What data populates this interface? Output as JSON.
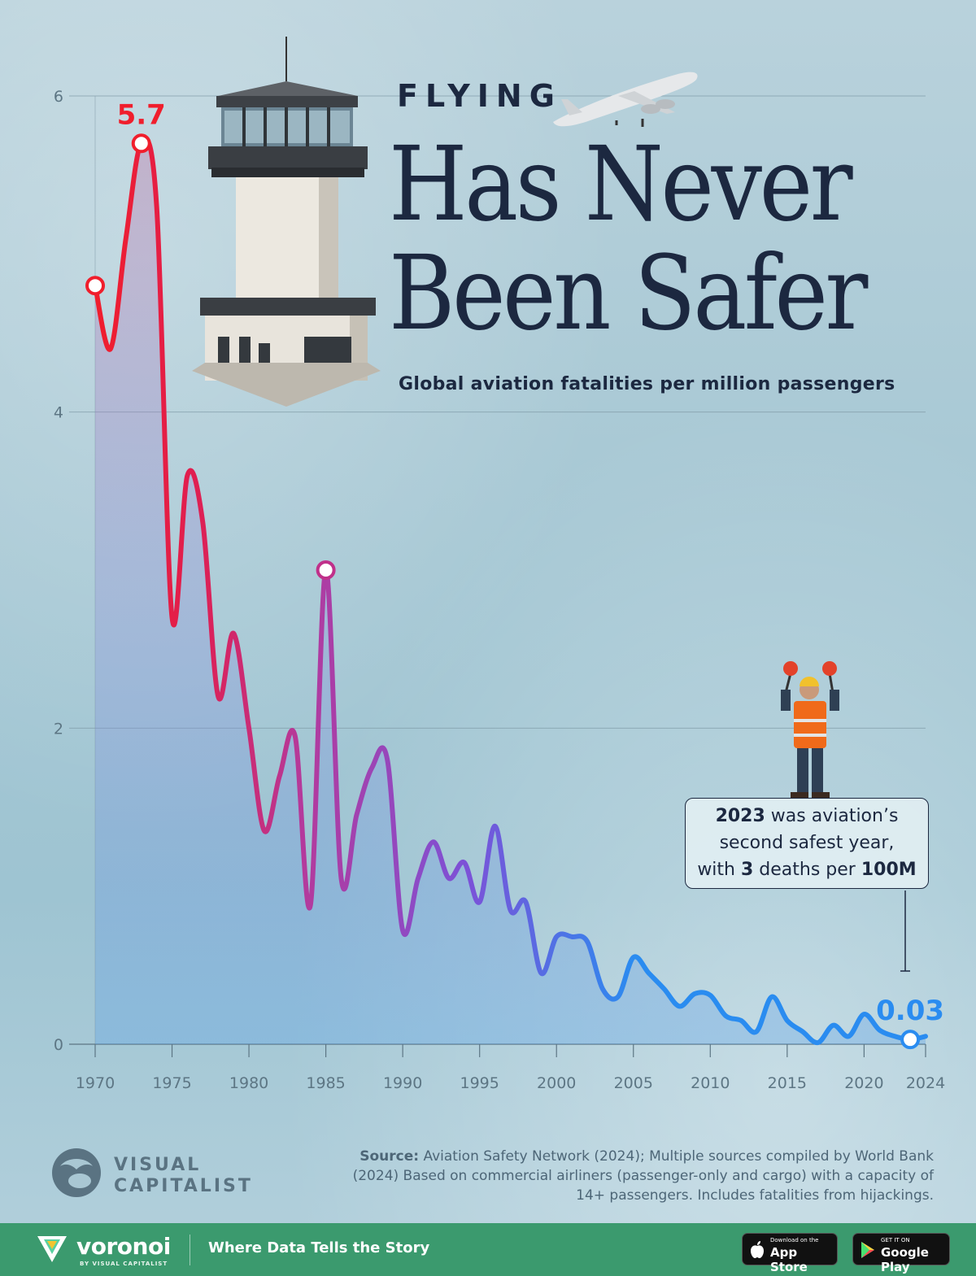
{
  "kicker": "FLYING",
  "headline_line1": "Has Never",
  "headline_line2": "Been Safer",
  "subtitle": "Global aviation fatalities per million passengers",
  "callout": {
    "year": "2023",
    "text_a": " was aviation’s",
    "line2": "second safest year,",
    "text_b": "with ",
    "deaths": "3",
    "text_c": " deaths per ",
    "per": "100M"
  },
  "source": {
    "label": "Source:",
    "text": " Aviation Safety Network (2024); Multiple sources compiled by World Bank (2024) Based on commercial airliners (passenger-only and cargo) with a capacity of 14+ passengers. Includes fatalities from hijackings."
  },
  "brand": {
    "vc_line1": "VISUAL",
    "vc_line2": "CAPITALIST",
    "voronoi": "voronoi",
    "voronoi_sub": "BY VISUAL CAPITALIST",
    "tagline": "Where Data Tells the Story",
    "appstore_small": "Download on the",
    "appstore_big": "App Store",
    "googleplay_small": "GET IT ON",
    "googleplay_big": "Google Play"
  },
  "colors": {
    "line_start": "#f01e2c",
    "line_mid": "#b43a9c",
    "line_purple": "#7b52d8",
    "line_end": "#2a8cf0",
    "headline": "#1c2840",
    "footer": "#3b9a6e"
  },
  "chart_data": {
    "type": "line",
    "title": "Has Never Been Safer",
    "subtitle": "Global aviation fatalities per million passengers",
    "xlabel": "",
    "ylabel": "",
    "xlim": [
      1970,
      2024
    ],
    "ylim": [
      0,
      6
    ],
    "yticks": [
      0,
      2,
      4,
      6
    ],
    "xticks": [
      1970,
      1975,
      1980,
      1985,
      1990,
      1995,
      2000,
      2005,
      2010,
      2015,
      2020,
      2024
    ],
    "grid": true,
    "series": [
      {
        "x": [
          1970,
          1971,
          1972,
          1973,
          1974,
          1975,
          1976,
          1977,
          1978,
          1979,
          1980,
          1981,
          1982,
          1983,
          1984,
          1985,
          1986,
          1987,
          1988,
          1989,
          1990,
          1991,
          1992,
          1993,
          1994,
          1995,
          1996,
          1997,
          1998,
          1999,
          2000,
          2001,
          2002,
          2003,
          2004,
          2005,
          2006,
          2007,
          2008,
          2009,
          2010,
          2011,
          2012,
          2013,
          2014,
          2015,
          2016,
          2017,
          2018,
          2019,
          2020,
          2021,
          2022,
          2023,
          2024
        ],
        "values": [
          4.8,
          4.4,
          5.1,
          5.7,
          5.3,
          2.7,
          3.6,
          3.3,
          2.2,
          2.6,
          2.0,
          1.35,
          1.7,
          1.95,
          0.88,
          3.0,
          1.05,
          1.45,
          1.75,
          1.8,
          0.72,
          1.05,
          1.28,
          1.05,
          1.15,
          0.9,
          1.38,
          0.85,
          0.9,
          0.45,
          0.68,
          0.68,
          0.65,
          0.35,
          0.3,
          0.55,
          0.45,
          0.35,
          0.24,
          0.32,
          0.31,
          0.18,
          0.15,
          0.08,
          0.3,
          0.15,
          0.08,
          0.01,
          0.12,
          0.05,
          0.19,
          0.09,
          0.05,
          0.03,
          0.05
        ]
      }
    ],
    "highlighted_points": [
      {
        "x": 1970,
        "value": 4.8,
        "label": ""
      },
      {
        "x": 1973,
        "value": 5.7,
        "label": "5.7"
      },
      {
        "x": 1985,
        "value": 3.0,
        "label": ""
      },
      {
        "x": 2023,
        "value": 0.03,
        "label": "0.03"
      }
    ]
  }
}
